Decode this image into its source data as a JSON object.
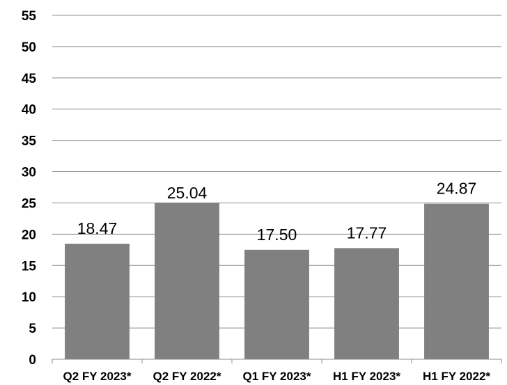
{
  "chart_data": {
    "type": "bar",
    "title": "",
    "xlabel": "",
    "ylabel": "",
    "categories": [
      "Q2 FY 2023*",
      "Q2 FY 2022*",
      "Q1 FY 2023*",
      "H1 FY 2023*",
      "H1 FY 2022*"
    ],
    "values": [
      18.47,
      25.04,
      17.5,
      17.77,
      24.87
    ],
    "data_labels": [
      "18.47",
      "25.04",
      "17.50",
      "17.77",
      "24.87"
    ],
    "ylim": [
      0,
      55
    ],
    "yticks": [
      "0",
      "5",
      "10",
      "15",
      "20",
      "25",
      "30",
      "35",
      "40",
      "45",
      "50",
      "55"
    ],
    "grid": true,
    "legend": "none",
    "bar_color": "#808080"
  }
}
